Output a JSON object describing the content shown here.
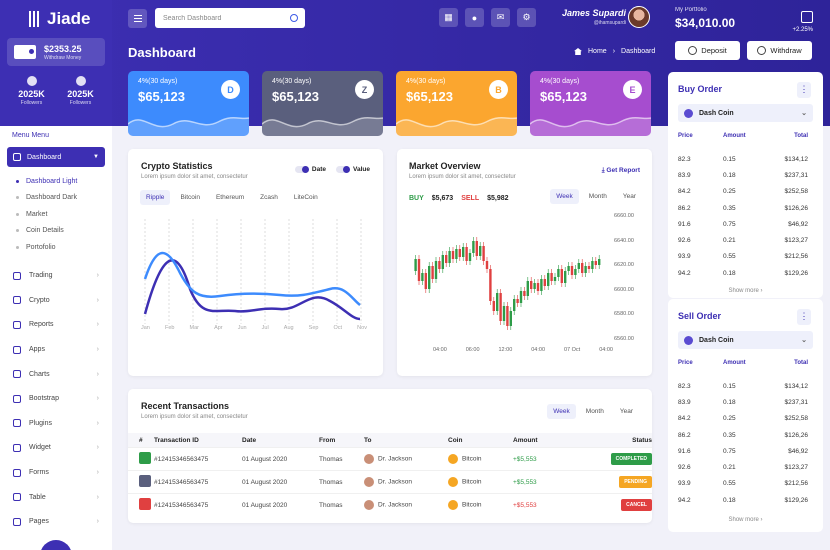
{
  "app": {
    "name": "Jiade"
  },
  "sidebar": {
    "wallet": {
      "amount": "$2353.25",
      "label": "Withdraw Money"
    },
    "stats": [
      {
        "value": "2025K",
        "label": "Followers"
      },
      {
        "value": "2025K",
        "label": "Followers"
      }
    ],
    "menu_title": "Menu Menu",
    "active": "Dashboard",
    "dashboard_sub": [
      "Dashboard Light",
      "Dashboard Dark",
      "Market",
      "Coin Details",
      "Portofolio"
    ],
    "items": [
      {
        "label": "Trading",
        "icon": "trading-icon"
      },
      {
        "label": "Crypto",
        "icon": "crypto-icon"
      },
      {
        "label": "Reports",
        "icon": "reports-icon"
      },
      {
        "label": "Apps",
        "icon": "apps-icon"
      },
      {
        "label": "Charts",
        "icon": "charts-icon"
      },
      {
        "label": "Bootstrap",
        "icon": "bootstrap-icon"
      },
      {
        "label": "Plugins",
        "icon": "plugins-icon"
      },
      {
        "label": "Widget",
        "icon": "widget-icon"
      },
      {
        "label": "Forms",
        "icon": "forms-icon"
      },
      {
        "label": "Table",
        "icon": "table-icon"
      },
      {
        "label": "Pages",
        "icon": "pages-icon"
      }
    ]
  },
  "header": {
    "search_placeholder": "Search Dashboard",
    "user_name": "James Supardi",
    "user_handle": "@ihamsupardi",
    "icons": [
      "grid-icon",
      "bell-icon",
      "mail-icon",
      "gear-icon"
    ]
  },
  "page": {
    "title": "Dashboard",
    "breadcrumb": [
      "Home",
      "Dashboard"
    ]
  },
  "stat_cards": [
    {
      "pct": "4%(30 days)",
      "value": "$65,123",
      "coin": "D",
      "color": "#3d8bfd"
    },
    {
      "pct": "4%(30 days)",
      "value": "$65,123",
      "coin": "Z",
      "color": "#5a5f7d"
    },
    {
      "pct": "4%(30 days)",
      "value": "$65,123",
      "coin": "B",
      "color": "#fba62f"
    },
    {
      "pct": "4%(30 days)",
      "value": "$65,123",
      "coin": "E",
      "color": "#a64dcf"
    }
  ],
  "crypto_stats": {
    "title": "Crypto Statistics",
    "subtitle": "Lorem ipsum dolor sit amet, consectetur",
    "legend": [
      "Date",
      "Value"
    ],
    "tabs": [
      "Ripple",
      "Bitcoin",
      "Ethereum",
      "Zcash",
      "LiteCoin"
    ],
    "months": [
      "Jan",
      "Feb",
      "Mar",
      "Apr",
      "Jun",
      "Jul",
      "Aug",
      "Sep",
      "Oct",
      "Nov"
    ]
  },
  "market": {
    "title": "Market Overview",
    "subtitle": "Lorem ipsum dolor sit amet, consectetur",
    "report_label": "Get Report",
    "buy_label": "BUY",
    "buy_value": "$5,673",
    "sell_label": "SELL",
    "sell_value": "$5,982",
    "tabs": [
      "Week",
      "Month",
      "Year"
    ],
    "y_ticks": [
      "6660.00",
      "6640.00",
      "6620.00",
      "6600.00",
      "6580.00",
      "6560.00"
    ],
    "x_ticks": [
      "04:00",
      "06:00",
      "12:00",
      "04:00",
      "07 Oct",
      "04:00"
    ]
  },
  "transactions": {
    "title": "Recent Transactions",
    "subtitle": "Lorem ipsum dolor sit amet, consectetur",
    "tabs": [
      "Week",
      "Month",
      "Year"
    ],
    "columns": [
      "#",
      "Transaction ID",
      "Date",
      "From",
      "To",
      "Coin",
      "Amount",
      "Status"
    ],
    "rows": [
      {
        "id": "#12415346563475",
        "date": "01 August 2020",
        "from": "Thomas",
        "to": "Dr. Jackson",
        "coin": "Bitcoin",
        "amount": "+$5,553",
        "status": "COMPLETED",
        "status_color": "#2e9c48",
        "icon_color": "#2e9c48"
      },
      {
        "id": "#12415346563475",
        "date": "01 August 2020",
        "from": "Thomas",
        "to": "Dr. Jackson",
        "coin": "Bitcoin",
        "amount": "+$5,553",
        "status": "PENDING",
        "status_color": "#f5a623",
        "icon_color": "#5a5f7d"
      },
      {
        "id": "#12415346563475",
        "date": "01 August 2020",
        "from": "Thomas",
        "to": "Dr. Jackson",
        "coin": "Bitcoin",
        "amount": "+$5,553",
        "status": "CANCEL",
        "status_color": "#e04040",
        "icon_color": "#e04040"
      }
    ]
  },
  "portfolio": {
    "label": "My Portfolio",
    "value": "$34,010.00",
    "change": "+2.25%",
    "deposit": "Deposit",
    "withdraw": "Withdraw"
  },
  "buy_order": {
    "title": "Buy Order",
    "coin": "Dash Coin",
    "columns": [
      "Price",
      "Amount",
      "Total"
    ],
    "rows": [
      [
        "82.3",
        "0.15",
        "$134,12"
      ],
      [
        "83.9",
        "0.18",
        "$237,31"
      ],
      [
        "84.2",
        "0.25",
        "$252,58"
      ],
      [
        "86.2",
        "0.35",
        "$126,26"
      ],
      [
        "91.6",
        "0.75",
        "$46,92"
      ],
      [
        "92.6",
        "0.21",
        "$123,27"
      ],
      [
        "93.9",
        "0.55",
        "$212,56"
      ],
      [
        "94.2",
        "0.18",
        "$129,26"
      ]
    ],
    "more": "Show more"
  },
  "sell_order": {
    "title": "Sell Order",
    "coin": "Dash Coin",
    "columns": [
      "Price",
      "Amount",
      "Total"
    ],
    "rows": [
      [
        "82.3",
        "0.15",
        "$134,12"
      ],
      [
        "83.9",
        "0.18",
        "$237,31"
      ],
      [
        "84.2",
        "0.25",
        "$252,58"
      ],
      [
        "86.2",
        "0.35",
        "$126,26"
      ],
      [
        "91.6",
        "0.75",
        "$46,92"
      ],
      [
        "92.6",
        "0.21",
        "$123,27"
      ],
      [
        "93.9",
        "0.55",
        "$212,56"
      ],
      [
        "94.2",
        "0.18",
        "$129,26"
      ]
    ],
    "more": "Show more"
  }
}
